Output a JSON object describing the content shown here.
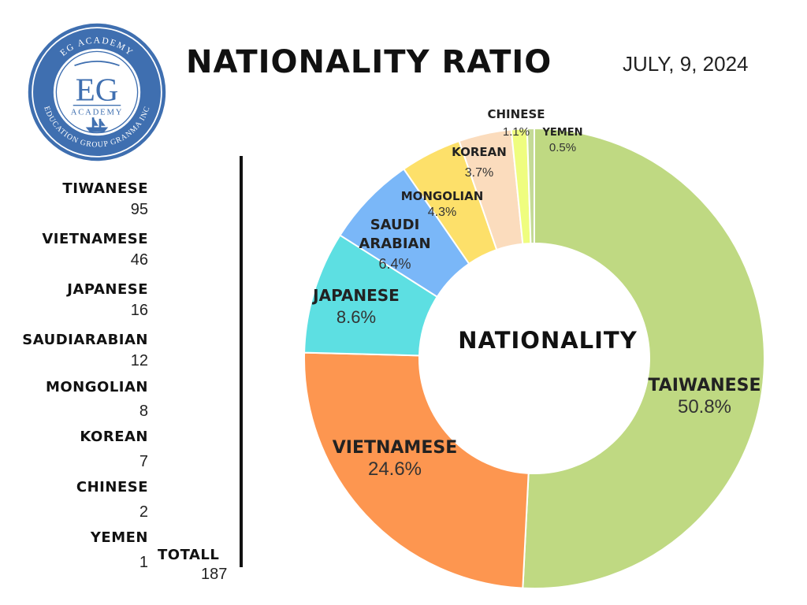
{
  "header": {
    "title": "NATIONALITY RATIO",
    "date": "JULY, 9, 2024"
  },
  "logo": {
    "arc_top": "EG ACADEMY",
    "monogram": "EG",
    "sub": "ACADEMY",
    "arc_bottom": "EDUCATION GROUP GRANMA INC"
  },
  "legend": {
    "items": [
      {
        "name": "TIWANESE",
        "count": "95"
      },
      {
        "name": "VIETNAMESE",
        "count": "46"
      },
      {
        "name": "JAPANESE",
        "count": "16"
      },
      {
        "name": "SAUDIARABIAN",
        "count": "12"
      },
      {
        "name": "MONGOLIAN",
        "count": "8"
      },
      {
        "name": "KOREAN",
        "count": "7"
      },
      {
        "name": "CHINESE",
        "count": "2"
      },
      {
        "name": "YEMEN",
        "count": "1"
      }
    ],
    "total_label": "TOTALL",
    "total_value": "187"
  },
  "chart_data": {
    "type": "pie",
    "center_label": "NATIONALITY",
    "slices": [
      {
        "label": "TAIWANESE",
        "value": 50.8,
        "value_label": "50.8%",
        "color": "#bfd982"
      },
      {
        "label": "VIETNAMESE",
        "value": 24.6,
        "value_label": "24.6%",
        "color": "#fd9650"
      },
      {
        "label": "JAPANESE",
        "value": 8.6,
        "value_label": "8.6%",
        "color": "#5ddfe2"
      },
      {
        "label": "SAUDI ARABIAN",
        "value": 6.4,
        "value_label": "6.4%",
        "color": "#7ab7f8"
      },
      {
        "label": "MONGOLIAN",
        "value": 4.3,
        "value_label": "4.3%",
        "color": "#fde06a"
      },
      {
        "label": "KOREAN",
        "value": 3.7,
        "value_label": "3.7%",
        "color": "#fbdcbd"
      },
      {
        "label": "CHINESE",
        "value": 1.1,
        "value_label": "1.1%",
        "color": "#effd7f"
      },
      {
        "label": "YEMEN",
        "value": 0.5,
        "value_label": "0.5%",
        "color": "#c4da96"
      }
    ]
  }
}
